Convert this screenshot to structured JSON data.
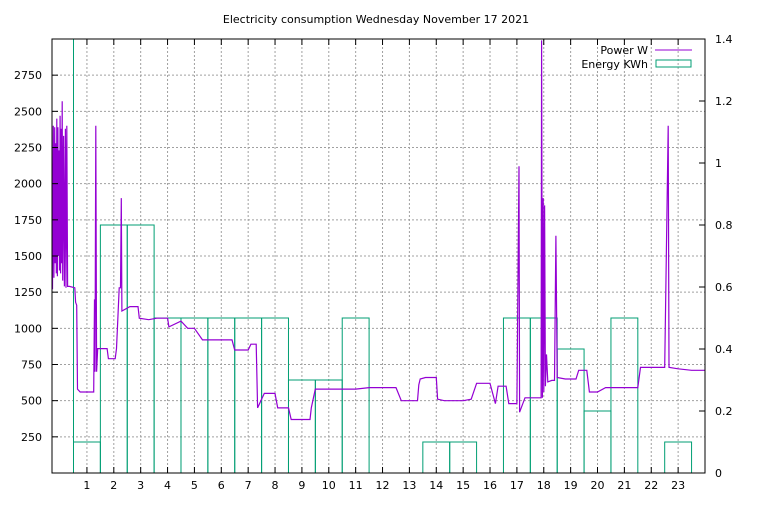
{
  "chart_data": {
    "type": "line",
    "title": "Electricity consumption Wednesday November 17 2021",
    "x_ticks": [
      "1",
      "2",
      "3",
      "4",
      "5",
      "6",
      "7",
      "8",
      "9",
      "10",
      "11",
      "12",
      "13",
      "14",
      "15",
      "16",
      "17",
      "18",
      "19",
      "20",
      "21",
      "22",
      "23"
    ],
    "xlim": [
      -0.3,
      24
    ],
    "y_left": {
      "ticks": [
        "250",
        "500",
        "750",
        "1000",
        "1250",
        "1500",
        "1750",
        "2000",
        "2250",
        "2500",
        "2750"
      ],
      "lim": [
        0,
        3000
      ]
    },
    "y_right": {
      "ticks": [
        "0",
        "0.2",
        "0.4",
        "0.6",
        "0.8",
        "1",
        "1.2",
        "1.4"
      ],
      "lim": [
        0,
        1.4
      ]
    },
    "grid": true,
    "legend_position": "top-right",
    "series": [
      {
        "name": "Power W",
        "axis": "left",
        "color": "#9400d3",
        "points": [
          [
            -0.28,
            1270
          ],
          [
            -0.25,
            2400
          ],
          [
            -0.23,
            1350
          ],
          [
            -0.2,
            2390
          ],
          [
            -0.18,
            1450
          ],
          [
            -0.16,
            2280
          ],
          [
            -0.14,
            1380
          ],
          [
            -0.12,
            2450
          ],
          [
            -0.1,
            1360
          ],
          [
            -0.08,
            2390
          ],
          [
            -0.06,
            1500
          ],
          [
            -0.04,
            2230
          ],
          [
            -0.02,
            1400
          ],
          [
            0.0,
            2470
          ],
          [
            0.02,
            1380
          ],
          [
            0.04,
            2380
          ],
          [
            0.06,
            1450
          ],
          [
            0.08,
            2570
          ],
          [
            0.1,
            1330
          ],
          [
            0.13,
            2330
          ],
          [
            0.16,
            1290
          ],
          [
            0.2,
            2380
          ],
          [
            0.22,
            1280
          ],
          [
            0.25,
            2400
          ],
          [
            0.28,
            1290
          ],
          [
            0.35,
            1290
          ],
          [
            0.55,
            1280
          ],
          [
            0.58,
            1180
          ],
          [
            0.62,
            1160
          ],
          [
            0.65,
            580
          ],
          [
            0.75,
            560
          ],
          [
            1.0,
            560
          ],
          [
            1.25,
            560
          ],
          [
            1.28,
            1200
          ],
          [
            1.3,
            700
          ],
          [
            1.33,
            2400
          ],
          [
            1.36,
            700
          ],
          [
            1.4,
            860
          ],
          [
            1.7,
            860
          ],
          [
            1.75,
            860
          ],
          [
            1.8,
            790
          ],
          [
            2.0,
            790
          ],
          [
            2.05,
            790
          ],
          [
            2.1,
            860
          ],
          [
            2.15,
            1060
          ],
          [
            2.2,
            1280
          ],
          [
            2.25,
            1280
          ],
          [
            2.28,
            1900
          ],
          [
            2.3,
            1120
          ],
          [
            2.6,
            1150
          ],
          [
            2.9,
            1150
          ],
          [
            2.95,
            1070
          ],
          [
            3.3,
            1060
          ],
          [
            3.6,
            1070
          ],
          [
            4.0,
            1070
          ],
          [
            4.05,
            1010
          ],
          [
            4.5,
            1050
          ],
          [
            4.75,
            1000
          ],
          [
            5.0,
            1000
          ],
          [
            5.3,
            920
          ],
          [
            6.0,
            920
          ],
          [
            6.4,
            920
          ],
          [
            6.5,
            850
          ],
          [
            7.0,
            850
          ],
          [
            7.1,
            890
          ],
          [
            7.3,
            890
          ],
          [
            7.35,
            450
          ],
          [
            7.6,
            550
          ],
          [
            8.0,
            550
          ],
          [
            8.1,
            450
          ],
          [
            8.5,
            450
          ],
          [
            8.6,
            370
          ],
          [
            9.0,
            370
          ],
          [
            9.3,
            370
          ],
          [
            9.35,
            450
          ],
          [
            9.5,
            580
          ],
          [
            10.0,
            580
          ],
          [
            10.5,
            580
          ],
          [
            11.0,
            580
          ],
          [
            11.5,
            590
          ],
          [
            12.0,
            590
          ],
          [
            12.5,
            590
          ],
          [
            12.7,
            500
          ],
          [
            13.3,
            500
          ],
          [
            13.35,
            610
          ],
          [
            13.4,
            650
          ],
          [
            13.6,
            660
          ],
          [
            14.0,
            660
          ],
          [
            14.05,
            510
          ],
          [
            14.3,
            500
          ],
          [
            15.0,
            500
          ],
          [
            15.3,
            510
          ],
          [
            15.5,
            620
          ],
          [
            16.0,
            620
          ],
          [
            16.2,
            480
          ],
          [
            16.3,
            600
          ],
          [
            16.6,
            600
          ],
          [
            16.7,
            480
          ],
          [
            17.0,
            480
          ],
          [
            17.05,
            1500
          ],
          [
            17.08,
            2120
          ],
          [
            17.1,
            420
          ],
          [
            17.3,
            520
          ],
          [
            17.6,
            520
          ],
          [
            17.9,
            520
          ],
          [
            17.92,
            2990
          ],
          [
            17.95,
            520
          ],
          [
            17.98,
            1900
          ],
          [
            18.0,
            560
          ],
          [
            18.03,
            1850
          ],
          [
            18.06,
            600
          ],
          [
            18.1,
            820
          ],
          [
            18.15,
            630
          ],
          [
            18.3,
            640
          ],
          [
            18.4,
            640
          ],
          [
            18.45,
            1640
          ],
          [
            18.5,
            660
          ],
          [
            18.8,
            650
          ],
          [
            19.0,
            650
          ],
          [
            19.2,
            650
          ],
          [
            19.3,
            710
          ],
          [
            19.6,
            710
          ],
          [
            19.7,
            560
          ],
          [
            20.0,
            560
          ],
          [
            20.3,
            590
          ],
          [
            21.0,
            590
          ],
          [
            21.5,
            590
          ],
          [
            21.6,
            730
          ],
          [
            22.0,
            730
          ],
          [
            22.3,
            730
          ],
          [
            22.5,
            730
          ],
          [
            22.63,
            2400
          ],
          [
            22.66,
            730
          ],
          [
            23.0,
            720
          ],
          [
            23.5,
            710
          ],
          [
            24.0,
            710
          ]
        ]
      },
      {
        "name": "Energy KWh",
        "axis": "right",
        "color": "#009e73",
        "bars": [
          {
            "x": 0,
            "value": 1.4
          },
          {
            "x": 1,
            "value": 0.1
          },
          {
            "x": 2,
            "value": 0.8
          },
          {
            "x": 3,
            "value": 0.8
          },
          {
            "x": 4,
            "value": 0.5
          },
          {
            "x": 5,
            "value": 0.5
          },
          {
            "x": 6,
            "value": 0.5
          },
          {
            "x": 7,
            "value": 0.5
          },
          {
            "x": 8,
            "value": 0.5
          },
          {
            "x": 9,
            "value": 0.3
          },
          {
            "x": 10,
            "value": 0.3
          },
          {
            "x": 11,
            "value": 0.5
          },
          {
            "x": 12,
            "value": 0
          },
          {
            "x": 13,
            "value": 0
          },
          {
            "x": 14,
            "value": 0.1
          },
          {
            "x": 15,
            "value": 0.1
          },
          {
            "x": 16,
            "value": 0
          },
          {
            "x": 17,
            "value": 0.5
          },
          {
            "x": 18,
            "value": 0.5
          },
          {
            "x": 19,
            "value": 0.4
          },
          {
            "x": 20,
            "value": 0.2
          },
          {
            "x": 21,
            "value": 0.5
          },
          {
            "x": 22,
            "value": 0
          },
          {
            "x": 23,
            "value": 0.1
          }
        ]
      }
    ]
  }
}
